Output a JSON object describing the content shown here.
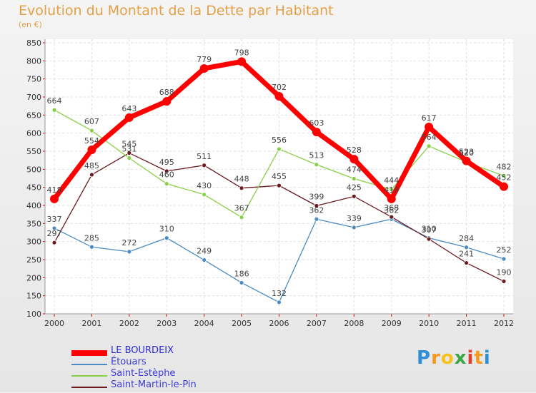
{
  "chart_data": {
    "type": "line",
    "title": "Evolution du Montant de la Dette par Habitant",
    "subtitle": "(en €)",
    "categories": [
      "2000",
      "2001",
      "2002",
      "2003",
      "2004",
      "2005",
      "2006",
      "2007",
      "2008",
      "2009",
      "2010",
      "2011",
      "2012"
    ],
    "ylim": [
      100,
      850
    ],
    "yticks": [
      100,
      150,
      200,
      250,
      300,
      350,
      400,
      450,
      500,
      550,
      600,
      650,
      700,
      750,
      800,
      850
    ],
    "grid": true,
    "legend_position": "bottom-left",
    "series": [
      {
        "name": "LE BOURDEIX",
        "color": "#ff0000",
        "values": [
          418,
          554,
          643,
          688,
          779,
          798,
          702,
          603,
          528,
          418,
          617,
          523,
          452
        ]
      },
      {
        "name": "Étouars",
        "color": "#4a8bc3",
        "values": [
          337,
          285,
          272,
          310,
          249,
          186,
          132,
          362,
          339,
          362,
          310,
          284,
          252
        ]
      },
      {
        "name": "Saint-Estèphe",
        "color": "#88d045",
        "values": [
          664,
          607,
          531,
          460,
          430,
          367,
          556,
          513,
          474,
          444,
          564,
          520,
          482
        ]
      },
      {
        "name": "Saint-Martin-le-Pin",
        "color": "#6b1a20",
        "values": [
          297,
          485,
          545,
          495,
          511,
          448,
          455,
          399,
          425,
          368,
          307,
          241,
          190
        ]
      }
    ]
  },
  "brand": {
    "letters": [
      "P",
      "r",
      "o",
      "x",
      "i",
      "t",
      "i"
    ],
    "colors": [
      "#2d8fd8",
      "#f39a1f",
      "#f5c21b",
      "#3aa845",
      "#e23c2a",
      "#f39a1f",
      "#2d8fd8"
    ]
  }
}
